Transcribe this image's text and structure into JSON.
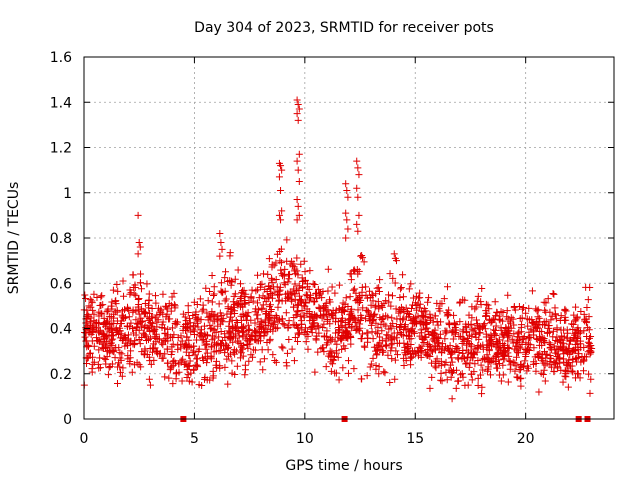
{
  "chart_data": {
    "type": "scatter",
    "title": "Day 304 of 2023, SRMTID for receiver pots",
    "xlabel": "GPS time / hours",
    "ylabel": "SRMTID / TECUs",
    "xlim": [
      0,
      24
    ],
    "ylim": [
      0,
      1.6
    ],
    "xticks": [
      0,
      5,
      10,
      15,
      20
    ],
    "yticks": [
      0,
      0.2,
      0.4,
      0.6,
      0.8,
      1,
      1.2,
      1.4,
      1.6
    ],
    "ytick_labels": [
      "0",
      "0.2",
      "0.4",
      "0.6",
      "0.8",
      "1",
      "1.2",
      "1.4",
      "1.6"
    ],
    "grid": true,
    "marker": "plus",
    "color": "#e00000",
    "envelope": [
      [
        0.0,
        0.12,
        0.66
      ],
      [
        0.5,
        0.1,
        0.62
      ],
      [
        1.0,
        0.12,
        0.6
      ],
      [
        1.5,
        0.1,
        0.7
      ],
      [
        2.0,
        0.1,
        0.64
      ],
      [
        2.5,
        0.08,
        0.76
      ],
      [
        3.0,
        0.08,
        0.62
      ],
      [
        3.5,
        0.08,
        0.62
      ],
      [
        4.0,
        0.06,
        0.6
      ],
      [
        4.5,
        0.06,
        0.55
      ],
      [
        5.0,
        0.08,
        0.58
      ],
      [
        5.5,
        0.08,
        0.62
      ],
      [
        6.0,
        0.1,
        0.66
      ],
      [
        6.5,
        0.1,
        0.74
      ],
      [
        7.0,
        0.12,
        0.7
      ],
      [
        7.5,
        0.12,
        0.66
      ],
      [
        8.0,
        0.14,
        0.7
      ],
      [
        8.5,
        0.2,
        0.82
      ],
      [
        9.0,
        0.16,
        0.9
      ],
      [
        9.5,
        0.15,
        0.82
      ],
      [
        10.0,
        0.18,
        0.8
      ],
      [
        10.5,
        0.14,
        0.7
      ],
      [
        11.0,
        0.12,
        0.66
      ],
      [
        11.5,
        0.1,
        0.64
      ],
      [
        12.0,
        0.14,
        0.8
      ],
      [
        12.5,
        0.12,
        0.84
      ],
      [
        13.0,
        0.12,
        0.66
      ],
      [
        13.5,
        0.1,
        0.64
      ],
      [
        14.0,
        0.1,
        0.72
      ],
      [
        14.5,
        0.12,
        0.66
      ],
      [
        15.0,
        0.15,
        0.62
      ],
      [
        15.5,
        0.12,
        0.6
      ],
      [
        16.0,
        0.1,
        0.62
      ],
      [
        16.5,
        0.06,
        0.6
      ],
      [
        17.0,
        0.06,
        0.58
      ],
      [
        17.5,
        0.06,
        0.58
      ],
      [
        18.0,
        0.06,
        0.58
      ],
      [
        18.5,
        0.06,
        0.64
      ],
      [
        19.0,
        0.06,
        0.58
      ],
      [
        19.5,
        0.06,
        0.58
      ],
      [
        20.0,
        0.06,
        0.6
      ],
      [
        20.5,
        0.06,
        0.58
      ],
      [
        21.0,
        0.06,
        0.58
      ],
      [
        21.5,
        0.06,
        0.56
      ],
      [
        22.0,
        0.06,
        0.54
      ],
      [
        22.5,
        0.06,
        0.6
      ],
      [
        23.0,
        0.06,
        0.62
      ]
    ],
    "spikes": [
      {
        "x": 2.5,
        "values": [
          0.9,
          0.78,
          0.76,
          0.73
        ]
      },
      {
        "x": 6.2,
        "values": [
          0.82,
          0.78,
          0.75,
          0.72
        ]
      },
      {
        "x": 8.9,
        "values": [
          1.13,
          1.12,
          1.1,
          1.07,
          1.01,
          0.92,
          0.9,
          0.88
        ]
      },
      {
        "x": 9.7,
        "values": [
          1.41,
          1.39,
          1.37,
          1.35,
          1.32,
          1.17,
          1.14,
          1.1,
          1.05,
          0.97,
          0.94,
          0.9,
          0.88
        ]
      },
      {
        "x": 11.9,
        "values": [
          1.04,
          1.01,
          0.98,
          0.91,
          0.88,
          0.84,
          0.8
        ]
      },
      {
        "x": 12.4,
        "values": [
          1.14,
          1.11,
          1.08,
          1.02,
          0.98,
          0.9,
          0.86,
          0.83
        ]
      },
      {
        "x": 14.1,
        "values": [
          0.73,
          0.71,
          0.7
        ]
      }
    ],
    "zero_markers_x": [
      4.5,
      11.8,
      22.4,
      22.8
    ]
  }
}
